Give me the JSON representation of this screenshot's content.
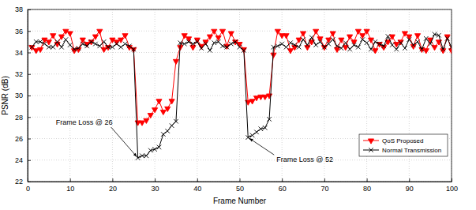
{
  "chart_data": {
    "type": "line",
    "x_label": "Frame Number",
    "y_label": "PSNR (dB)",
    "x": [
      1,
      2,
      3,
      4,
      5,
      6,
      7,
      8,
      9,
      10,
      11,
      12,
      13,
      14,
      15,
      16,
      17,
      18,
      19,
      20,
      21,
      22,
      23,
      24,
      25,
      26,
      27,
      28,
      29,
      30,
      31,
      32,
      33,
      34,
      35,
      36,
      37,
      38,
      39,
      40,
      41,
      42,
      43,
      44,
      45,
      46,
      47,
      48,
      49,
      50,
      51,
      52,
      53,
      54,
      55,
      56,
      57,
      58,
      59,
      60,
      61,
      62,
      63,
      64,
      65,
      66,
      67,
      68,
      69,
      70,
      71,
      72,
      73,
      74,
      75,
      76,
      77,
      78,
      79,
      80,
      81,
      82,
      83,
      84,
      85,
      86,
      87,
      88,
      89,
      90,
      91,
      92,
      93,
      94,
      95,
      96,
      97,
      98,
      99,
      100
    ],
    "series": [
      {
        "name": "QoS Proposed",
        "color": "#ff0000",
        "marker": "triangle-down",
        "line_style": "solid",
        "values": [
          34.5,
          34.2,
          34.3,
          35.2,
          35.0,
          35.6,
          34.8,
          35.5,
          36.0,
          35.8,
          34.2,
          34.3,
          35.2,
          34.8,
          35.0,
          35.5,
          36.0,
          34.3,
          34.5,
          35.2,
          35.0,
          35.2,
          35.6,
          34.5,
          34.3,
          27.5,
          27.5,
          27.7,
          28.2,
          28.7,
          29.5,
          28.5,
          28.8,
          29.5,
          33.2,
          34.5,
          35.6,
          35.3,
          34.5,
          35.2,
          34.6,
          35.0,
          35.5,
          36.0,
          35.4,
          36.0,
          34.6,
          35.8,
          35.0,
          34.8,
          34.3,
          29.4,
          29.5,
          29.8,
          29.9,
          29.9,
          30.0,
          33.8,
          36.0,
          35.6,
          35.6,
          34.2,
          34.5,
          35.2,
          35.8,
          34.5,
          35.0,
          36.0,
          35.3,
          34.5,
          35.2,
          35.8,
          34.3,
          35.2,
          34.5,
          35.5,
          35.0,
          36.0,
          35.6,
          36.0,
          35.2,
          34.2,
          34.8,
          34.5,
          35.0,
          35.5,
          34.8,
          35.0,
          35.8,
          35.5,
          34.6,
          35.6,
          34.3,
          34.2,
          35.2,
          34.5,
          35.0,
          34.2,
          35.5,
          34.2
        ]
      },
      {
        "name": "Normal Transmission",
        "color": "#000000",
        "marker": "x",
        "line_style": "solid",
        "values": [
          34.5,
          35.0,
          35.0,
          34.8,
          34.5,
          34.5,
          35.0,
          34.5,
          35.2,
          34.7,
          34.3,
          34.4,
          34.8,
          34.6,
          35.0,
          34.8,
          34.6,
          35.0,
          34.5,
          34.5,
          34.8,
          34.5,
          34.8,
          34.6,
          34.3,
          24.2,
          24.4,
          24.4,
          24.9,
          25.0,
          25.2,
          26.4,
          26.7,
          27.2,
          27.6,
          34.9,
          34.8,
          35.0,
          34.8,
          35.0,
          34.4,
          34.8,
          34.2,
          34.9,
          35.0,
          34.6,
          34.5,
          34.8,
          35.0,
          34.5,
          34.2,
          26.1,
          26.3,
          26.6,
          26.9,
          27.0,
          27.8,
          34.5,
          34.6,
          34.8,
          34.5,
          34.9,
          34.7,
          34.5,
          35.2,
          34.7,
          35.4,
          34.7,
          35.0,
          34.5,
          34.8,
          35.2,
          34.6,
          34.4,
          34.9,
          34.3,
          34.7,
          34.5,
          35.2,
          34.9,
          34.3,
          35.0,
          34.8,
          34.6,
          35.5,
          34.7,
          34.3,
          34.9,
          34.4,
          35.2,
          34.7,
          35.0,
          34.3,
          35.3,
          34.8,
          35.7,
          35.6,
          34.3,
          35.3,
          34.5
        ]
      }
    ],
    "xlim": [
      0,
      100
    ],
    "xticks": [
      0,
      10,
      20,
      30,
      40,
      50,
      60,
      70,
      80,
      90,
      100
    ],
    "ylim": [
      22,
      38
    ],
    "yticks": [
      22,
      24,
      26,
      28,
      30,
      32,
      34,
      36,
      38
    ],
    "grid": true,
    "legend": "lower right",
    "annotations": [
      {
        "text": "Frame Loss @ 26",
        "x": 26,
        "y": 24.2
      },
      {
        "text": "Frame Loss @ 52",
        "x": 52,
        "y": 26.1
      }
    ]
  }
}
